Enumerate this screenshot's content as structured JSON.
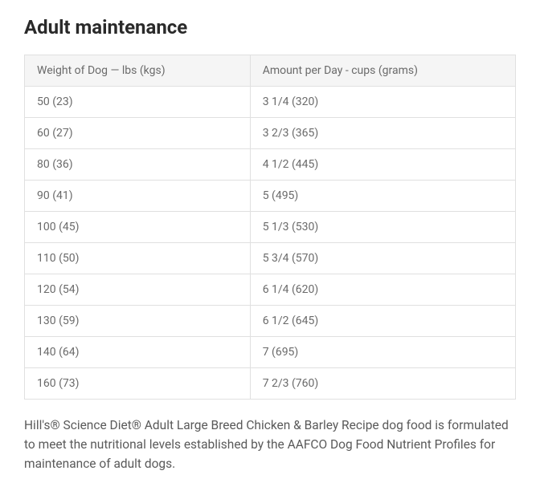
{
  "title": "Adult maintenance",
  "table": {
    "columns": [
      "Weight of Dog — lbs (kgs)",
      "Amount per Day - cups (grams)"
    ],
    "rows": [
      [
        "50 (23)",
        "3 1/4 (320)"
      ],
      [
        "60 (27)",
        "3 2/3 (365)"
      ],
      [
        "80 (36)",
        "4 1/2 (445)"
      ],
      [
        "90 (41)",
        "5 (495)"
      ],
      [
        "100 (45)",
        "5 1/3 (530)"
      ],
      [
        "110 (50)",
        "5 3/4 (570)"
      ],
      [
        "120 (54)",
        "6 1/4 (620)"
      ],
      [
        "130 (59)",
        "6 1/2 (645)"
      ],
      [
        "140 (64)",
        "7 (695)"
      ],
      [
        "160 (73)",
        "7 2/3 (760)"
      ]
    ],
    "header_bg": "#f5f5f5",
    "cell_bg": "#ffffff",
    "border_color": "#e0e0e0",
    "text_color": "#6a6a6a",
    "font_size": 14
  },
  "description": "Hill's® Science Diet® Adult Large Breed Chicken & Barley Recipe dog food is formulated to meet the nutritional levels established by the AAFCO Dog Food Nutrient Profiles for maintenance of adult dogs."
}
